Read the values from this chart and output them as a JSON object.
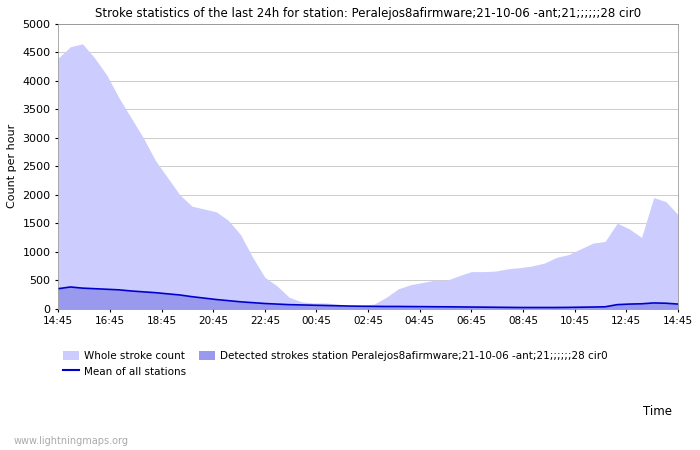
{
  "title": "Stroke statistics of the last 24h for station: Peralejos8afirmware;21-10-06 -ant;21;;;;;;28 cir0",
  "xlabel": "Time",
  "ylabel": "Count per hour",
  "ylim": [
    0,
    5000
  ],
  "yticks": [
    0,
    500,
    1000,
    1500,
    2000,
    2500,
    3000,
    3500,
    4000,
    4500,
    5000
  ],
  "xtick_labels": [
    "14:45",
    "16:45",
    "18:45",
    "20:45",
    "22:45",
    "00:45",
    "02:45",
    "04:45",
    "06:45",
    "08:45",
    "10:45",
    "12:45",
    "14:45"
  ],
  "whole_stroke_fill_color": "#ccccff",
  "detected_stroke_fill_color": "#9999ee",
  "mean_line_color": "#0000cc",
  "background_color": "#ffffff",
  "grid_color": "#cccccc",
  "watermark": "www.lightningmaps.org",
  "legend_label_whole": "Whole stroke count",
  "legend_label_mean": "Mean of all stations",
  "legend_label_detected": "Detected strokes station Peralejos8afirmware;21-10-06 -ant;21;;;;;;28 cir0",
  "whole_stroke_y": [
    4400,
    4600,
    4650,
    4400,
    4100,
    3700,
    3350,
    3000,
    2600,
    2300,
    2000,
    1800,
    1750,
    1700,
    1550,
    1300,
    900,
    550,
    400,
    200,
    120,
    100,
    100,
    80,
    60,
    60,
    80,
    200,
    350,
    420,
    460,
    500,
    500,
    580,
    650,
    650,
    660,
    700,
    720,
    750,
    800,
    900,
    950,
    1050,
    1150,
    1180,
    1500,
    1400,
    1250,
    1950,
    1880,
    1650
  ],
  "detected_stroke_y": [
    350,
    380,
    360,
    350,
    340,
    330,
    310,
    295,
    280,
    260,
    240,
    210,
    185,
    160,
    140,
    120,
    105,
    90,
    80,
    70,
    65,
    60,
    55,
    50,
    45,
    42,
    40,
    38,
    38,
    36,
    35,
    33,
    32,
    30,
    28,
    26,
    24,
    22,
    20,
    20,
    20,
    20,
    22,
    25,
    28,
    32,
    70,
    80,
    85,
    100,
    95,
    80
  ],
  "mean_line_y": [
    350,
    380,
    360,
    350,
    340,
    330,
    310,
    295,
    280,
    260,
    240,
    210,
    185,
    160,
    140,
    120,
    105,
    90,
    80,
    70,
    65,
    60,
    55,
    50,
    45,
    42,
    40,
    38,
    38,
    36,
    35,
    33,
    32,
    30,
    28,
    26,
    24,
    22,
    20,
    20,
    20,
    20,
    22,
    25,
    28,
    32,
    70,
    80,
    85,
    100,
    95,
    80
  ]
}
